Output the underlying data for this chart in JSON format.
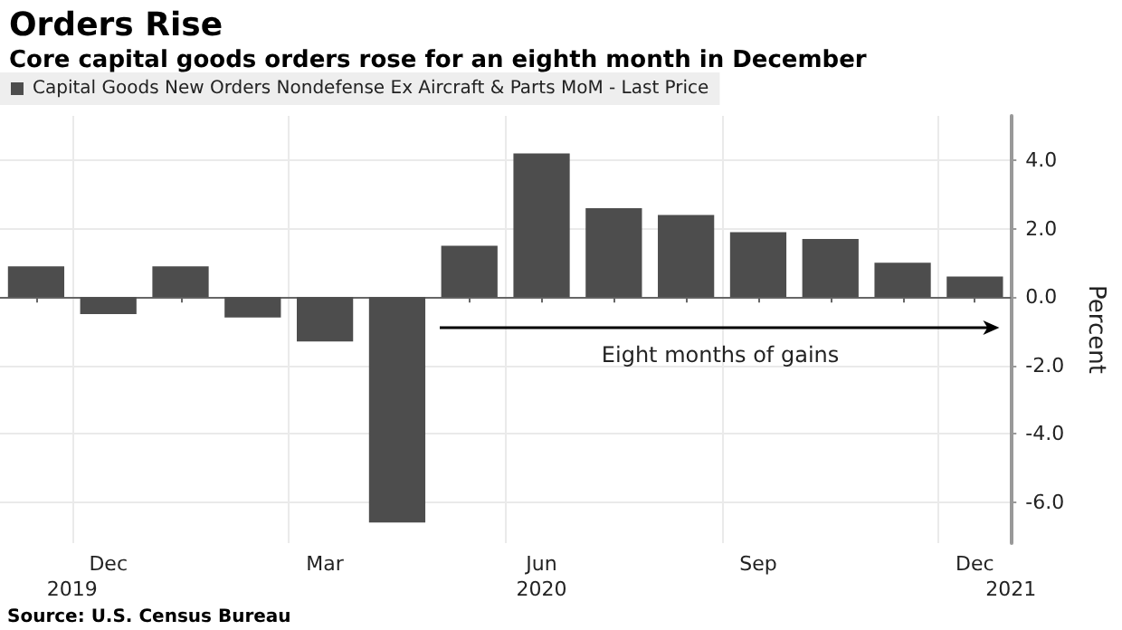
{
  "chart_data": {
    "type": "bar",
    "title": "Orders Rise",
    "subtitle": "Core capital goods orders rose for an eighth month in December",
    "ylabel": "Percent",
    "categories": [
      null,
      "Dec",
      null,
      null,
      "Mar",
      null,
      null,
      "Jun",
      null,
      null,
      "Sep",
      null,
      null,
      "Dec"
    ],
    "series": [
      {
        "name": "Capital Goods New Orders Nondefense Ex Aircraft & Parts MoM - Last Price",
        "color": "#4d4d4d",
        "values": [
          0.9,
          -0.5,
          0.9,
          -0.6,
          -1.3,
          -6.6,
          1.5,
          4.2,
          2.6,
          2.4,
          1.9,
          1.7,
          1.0,
          0.6
        ]
      }
    ],
    "ylim": [
      -7.2,
      5.3
    ],
    "yticks": [
      {
        "value": -6,
        "label": "-6.0"
      },
      {
        "value": -4,
        "label": "-4.0"
      },
      {
        "value": -2,
        "label": "-2.0"
      },
      {
        "value": 0,
        "label": "0.0"
      },
      {
        "value": 2,
        "label": "2.0"
      },
      {
        "value": 4,
        "label": "4.0"
      }
    ],
    "annotations": [
      "Eight months of gains",
      "2019",
      "2020",
      "2021",
      "Source: U.S. Census Bureau"
    ],
    "grid": true,
    "legend": "top left"
  }
}
